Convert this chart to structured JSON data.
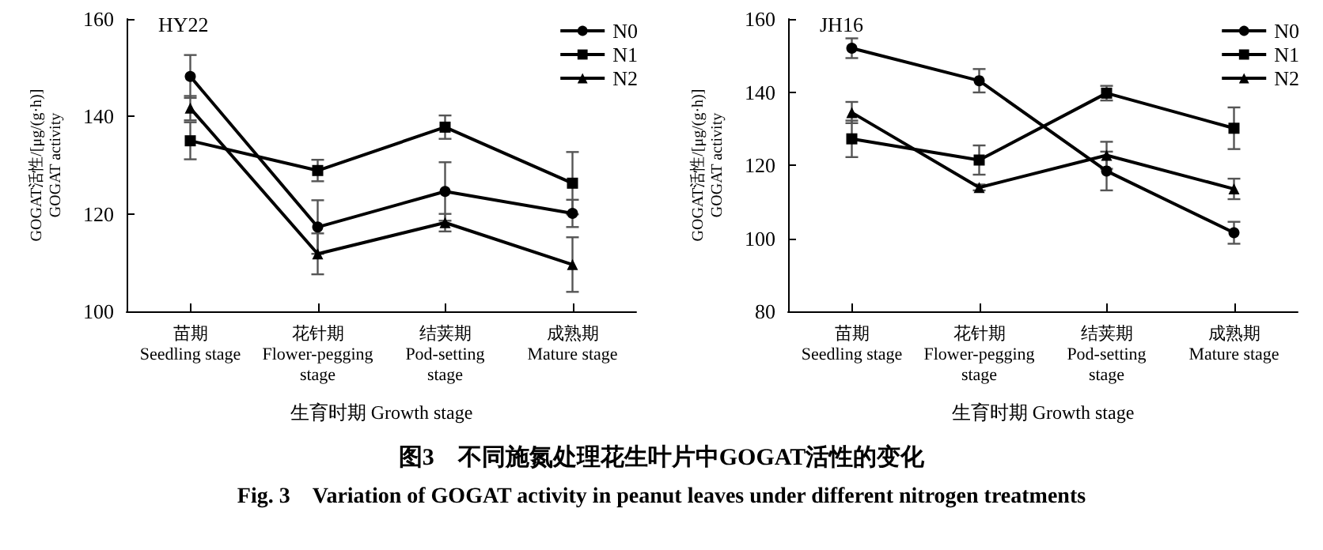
{
  "chart_data": [
    {
      "type": "line",
      "title": "HY22",
      "xlabel": "生育时期 Growth stage",
      "ylabel": "GOGAT活性/[μg/(g·h)]\nGOGAT activity",
      "categories": [
        "苗期\nSeedling stage",
        "花针期\nFlower-pegging\nstage",
        "结荚期\nPod-setting\nstage",
        "成熟期\nMature stage"
      ],
      "ylim": [
        100,
        160
      ],
      "yticks": [
        100,
        120,
        140,
        160
      ],
      "legend": "top right",
      "grid": false,
      "series": [
        {
          "name": "N0",
          "color": "#000000",
          "marker": "circle",
          "values": [
            148.2,
            117.3,
            124.6,
            120.1
          ],
          "errors": [
            4.4,
            5.5,
            6,
            2.8
          ]
        },
        {
          "name": "N1",
          "color": "#000000",
          "marker": "square",
          "values": [
            135,
            128.9,
            137.8,
            126.3
          ],
          "errors": [
            3.8,
            2.2,
            2.4,
            6.4
          ]
        },
        {
          "name": "N2",
          "color": "#000000",
          "marker": "triangle",
          "values": [
            141.7,
            111.8,
            118.2,
            109.6
          ],
          "errors": [
            2.5,
            4.2,
            1.8,
            5.6
          ]
        }
      ],
      "annotations": [
        "图3　不同施氮处理花生叶片中GOGAT活性的变化",
        "Fig. 3　Variation of GOGAT activity in peanut leaves under different nitrogen treatments"
      ]
    },
    {
      "type": "line",
      "title": "JH16",
      "xlabel": "生育时期 Growth stage",
      "ylabel": "GOGAT活性/[μg/(g·h)]\nGOGAT activity",
      "categories": [
        "苗期\nSeedling stage",
        "花针期\nFlower-pegging\nstage",
        "结荚期\nPod-setting\nstage",
        "成熟期\nMature stage"
      ],
      "ylim": [
        80,
        160
      ],
      "yticks": [
        80,
        100,
        120,
        140,
        160
      ],
      "legend": "top right",
      "grid": false,
      "series": [
        {
          "name": "N0",
          "color": "#000000",
          "marker": "circle",
          "values": [
            152,
            143.1,
            118.4,
            101.5
          ],
          "errors": [
            2.7,
            3.2,
            5.3,
            3
          ]
        },
        {
          "name": "N1",
          "color": "#000000",
          "marker": "square",
          "values": [
            127.2,
            121.4,
            139.7,
            130.1
          ],
          "errors": [
            5,
            4,
            2,
            5.7
          ]
        },
        {
          "name": "N2",
          "color": "#000000",
          "marker": "triangle",
          "values": [
            134.4,
            113.9,
            122.7,
            113.5
          ],
          "errors": [
            2.9,
            0.8,
            3.7,
            2.8
          ]
        }
      ]
    }
  ]
}
